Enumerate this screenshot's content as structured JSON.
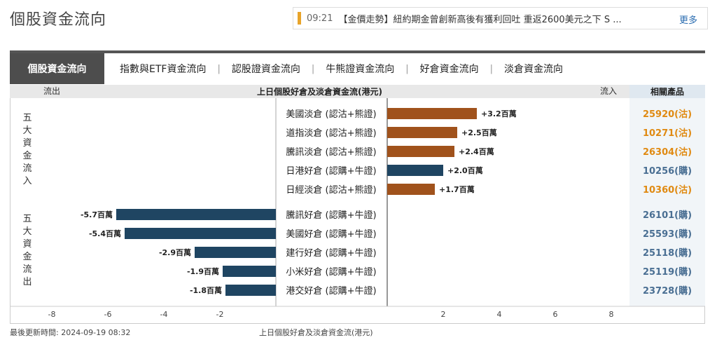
{
  "page": {
    "title": "個股資金流向"
  },
  "news": {
    "time": "09:21",
    "text": "【金價走勢】紐約期金曾創新高後有獲利回吐 重返2600美元之下 S ...",
    "more": "更多"
  },
  "tabs": [
    {
      "label": "個股資金流向"
    },
    {
      "label": "指數與ETF資金流向"
    },
    {
      "label": "認股證資金流向"
    },
    {
      "label": "牛熊證資金流向"
    },
    {
      "label": "好倉資金流向"
    },
    {
      "label": "淡倉資金流向"
    }
  ],
  "tab_sep": "|",
  "header": {
    "outflow": "流出",
    "title": "上日個股好倉及淡倉資金流(港元)",
    "inflow": "流入",
    "products": "相關產品"
  },
  "groups": {
    "inflow_label": [
      "五",
      "大",
      "資",
      "金",
      "流",
      "入"
    ],
    "outflow_label": [
      "五",
      "大",
      "資",
      "金",
      "流",
      "出"
    ]
  },
  "colors": {
    "bear": "#a0521c",
    "bull": "#1f4562",
    "orange_product": "#e08a12",
    "blue_product": "#4a6f93",
    "accent": "#e8a42a"
  },
  "chart_data": {
    "type": "bar",
    "unit": "百萬",
    "xlim": [
      -9,
      10
    ],
    "xticks": [
      -8,
      -6,
      -4,
      -2,
      2,
      4,
      6,
      8
    ],
    "xlabel": "上日個股好倉及淡倉資金流(港元)",
    "rows": [
      {
        "name": "美國淡倉 (認沽+熊證)",
        "value": 3.2,
        "label": "+3.2百萬",
        "kind": "bear",
        "product": "25920(沽)"
      },
      {
        "name": "道指淡倉 (認沽+熊證)",
        "value": 2.5,
        "label": "+2.5百萬",
        "kind": "bear",
        "product": "10271(沽)"
      },
      {
        "name": "騰訊淡倉 (認沽+熊證)",
        "value": 2.4,
        "label": "+2.4百萬",
        "kind": "bear",
        "product": "26304(沽)"
      },
      {
        "name": "日港好倉 (認購+牛證)",
        "value": 2.0,
        "label": "+2.0百萬",
        "kind": "bull",
        "product": "10256(購)"
      },
      {
        "name": "日經淡倉 (認沽+熊證)",
        "value": 1.7,
        "label": "+1.7百萬",
        "kind": "bear",
        "product": "10360(沽)"
      },
      {
        "name": "騰訊好倉 (認購+牛證)",
        "value": -5.7,
        "label": "-5.7百萬",
        "kind": "bull",
        "product": "26101(購)"
      },
      {
        "name": "美國好倉 (認購+牛證)",
        "value": -5.4,
        "label": "-5.4百萬",
        "kind": "bull",
        "product": "25593(購)"
      },
      {
        "name": "建行好倉 (認購+牛證)",
        "value": -2.9,
        "label": "-2.9百萬",
        "kind": "bull",
        "product": "25118(購)"
      },
      {
        "name": "小米好倉 (認購+牛證)",
        "value": -1.9,
        "label": "-1.9百萬",
        "kind": "bull",
        "product": "25119(購)"
      },
      {
        "name": "港交好倉 (認購+牛證)",
        "value": -1.8,
        "label": "-1.8百萬",
        "kind": "bull",
        "product": "23728(購)"
      }
    ]
  },
  "footer": {
    "updated": "最後更新時間: 2024-09-19 08:32",
    "source": "上日個股好倉及淡倉資金流(港元)"
  }
}
